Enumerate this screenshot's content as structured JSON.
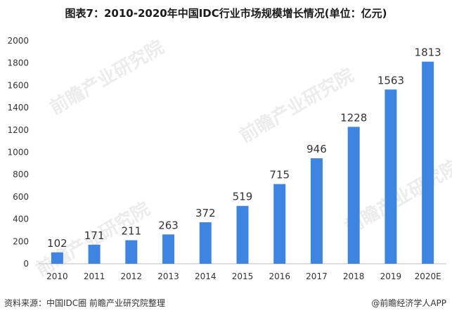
{
  "title": "图表7：2010-2020年中国IDC行业市场规模增长情况(单位：亿元)",
  "source": "资料来源：中国IDC圈 前瞻产业研究院整理",
  "brand": "@前瞻经济学人APP",
  "watermark": "前瞻产业研究院",
  "colors": {
    "bar": "#3d85e0",
    "axis": "#bfbfbf"
  },
  "chart_data": {
    "type": "bar",
    "title": "图表7：2010-2020年中国IDC行业市场规模增长情况(单位：亿元)",
    "xlabel": "",
    "ylabel": "",
    "categories": [
      "2010",
      "2011",
      "2012",
      "2013",
      "2014",
      "2015",
      "2016",
      "2017",
      "2018",
      "2019",
      "2020E"
    ],
    "values": [
      102,
      171,
      211,
      263,
      372,
      519,
      715,
      946,
      1228,
      1563,
      1813
    ],
    "ylim": [
      0,
      2000
    ],
    "yticks": [
      0,
      200,
      400,
      600,
      800,
      1000,
      1200,
      1400,
      1600,
      1800,
      2000
    ],
    "grid": false
  }
}
